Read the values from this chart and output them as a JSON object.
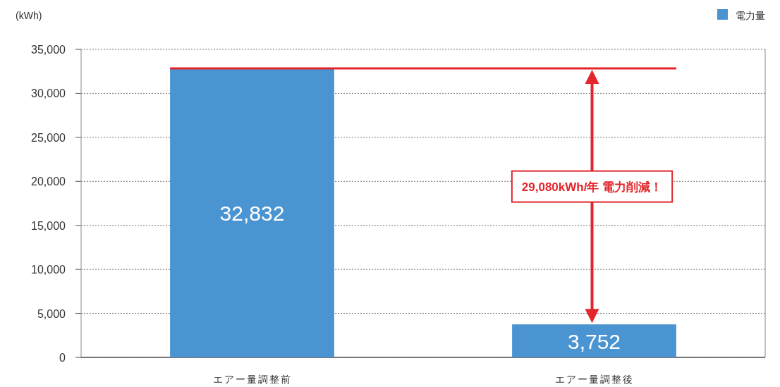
{
  "chart_data": {
    "type": "bar",
    "ylabel": "(kWh)",
    "categories": [
      "エアー量調整前",
      "エアー量調整後"
    ],
    "series": [
      {
        "name": "電力量",
        "color": "#4a94d2",
        "values": [
          32832,
          3752
        ],
        "value_labels": [
          "32,832",
          "3,752"
        ]
      }
    ],
    "ylim": [
      0,
      35000
    ],
    "yticks": [
      0,
      {
        "value": 5000,
        "label": "5,000"
      },
      {
        "value": 10000,
        "label": "10,000"
      },
      {
        "value": 15000,
        "label": "15,000"
      },
      {
        "value": 20000,
        "label": "20,000"
      },
      {
        "value": 25000,
        "label": "25,000"
      },
      {
        "value": 30000,
        "label": "30,000"
      },
      {
        "value": 35000,
        "label": "35,000"
      }
    ],
    "grid": "y",
    "legend": "top right",
    "ref_lines": [
      {
        "axis": "y",
        "value": 32832,
        "color": "#e3262b"
      }
    ],
    "annotations": [
      "29,080kWh/年 電力削減！"
    ]
  }
}
